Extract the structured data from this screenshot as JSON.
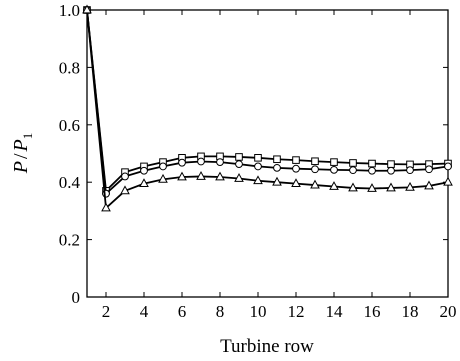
{
  "chart_data": {
    "type": "line",
    "title": "",
    "xlabel": "Turbine row",
    "ylabel": {
      "symbol": "P",
      "divider": "/",
      "denominator": "P",
      "denominator_subscript": "1"
    },
    "xlim": [
      1,
      20
    ],
    "ylim": [
      0,
      1.0
    ],
    "x": [
      1,
      2,
      3,
      4,
      5,
      6,
      7,
      8,
      9,
      10,
      11,
      12,
      13,
      14,
      15,
      16,
      17,
      18,
      19,
      20
    ],
    "x_ticks": [
      2,
      4,
      6,
      8,
      10,
      12,
      14,
      16,
      18,
      20
    ],
    "x_tick_labels": [
      "2",
      "4",
      "6",
      "8",
      "10",
      "12",
      "14",
      "16",
      "18",
      "20"
    ],
    "y_ticks": [
      0,
      0.2,
      0.4,
      0.6,
      0.8,
      1.0
    ],
    "y_tick_labels": [
      "0",
      "0.2",
      "0.4",
      "0.6",
      "0.8",
      "1.0"
    ],
    "grid": false,
    "legend": "none",
    "series": [
      {
        "marker": "square",
        "values": [
          1.0,
          0.37,
          0.435,
          0.455,
          0.47,
          0.485,
          0.49,
          0.49,
          0.488,
          0.485,
          0.48,
          0.477,
          0.473,
          0.47,
          0.467,
          0.465,
          0.463,
          0.462,
          0.463,
          0.465
        ]
      },
      {
        "marker": "circle",
        "values": [
          1.0,
          0.36,
          0.42,
          0.44,
          0.455,
          0.468,
          0.472,
          0.47,
          0.463,
          0.455,
          0.45,
          0.447,
          0.445,
          0.443,
          0.442,
          0.44,
          0.44,
          0.442,
          0.445,
          0.455
        ]
      },
      {
        "marker": "triangle",
        "values": [
          1.0,
          0.31,
          0.37,
          0.395,
          0.41,
          0.418,
          0.42,
          0.418,
          0.413,
          0.405,
          0.4,
          0.395,
          0.39,
          0.385,
          0.38,
          0.378,
          0.38,
          0.382,
          0.387,
          0.4
        ]
      }
    ]
  }
}
